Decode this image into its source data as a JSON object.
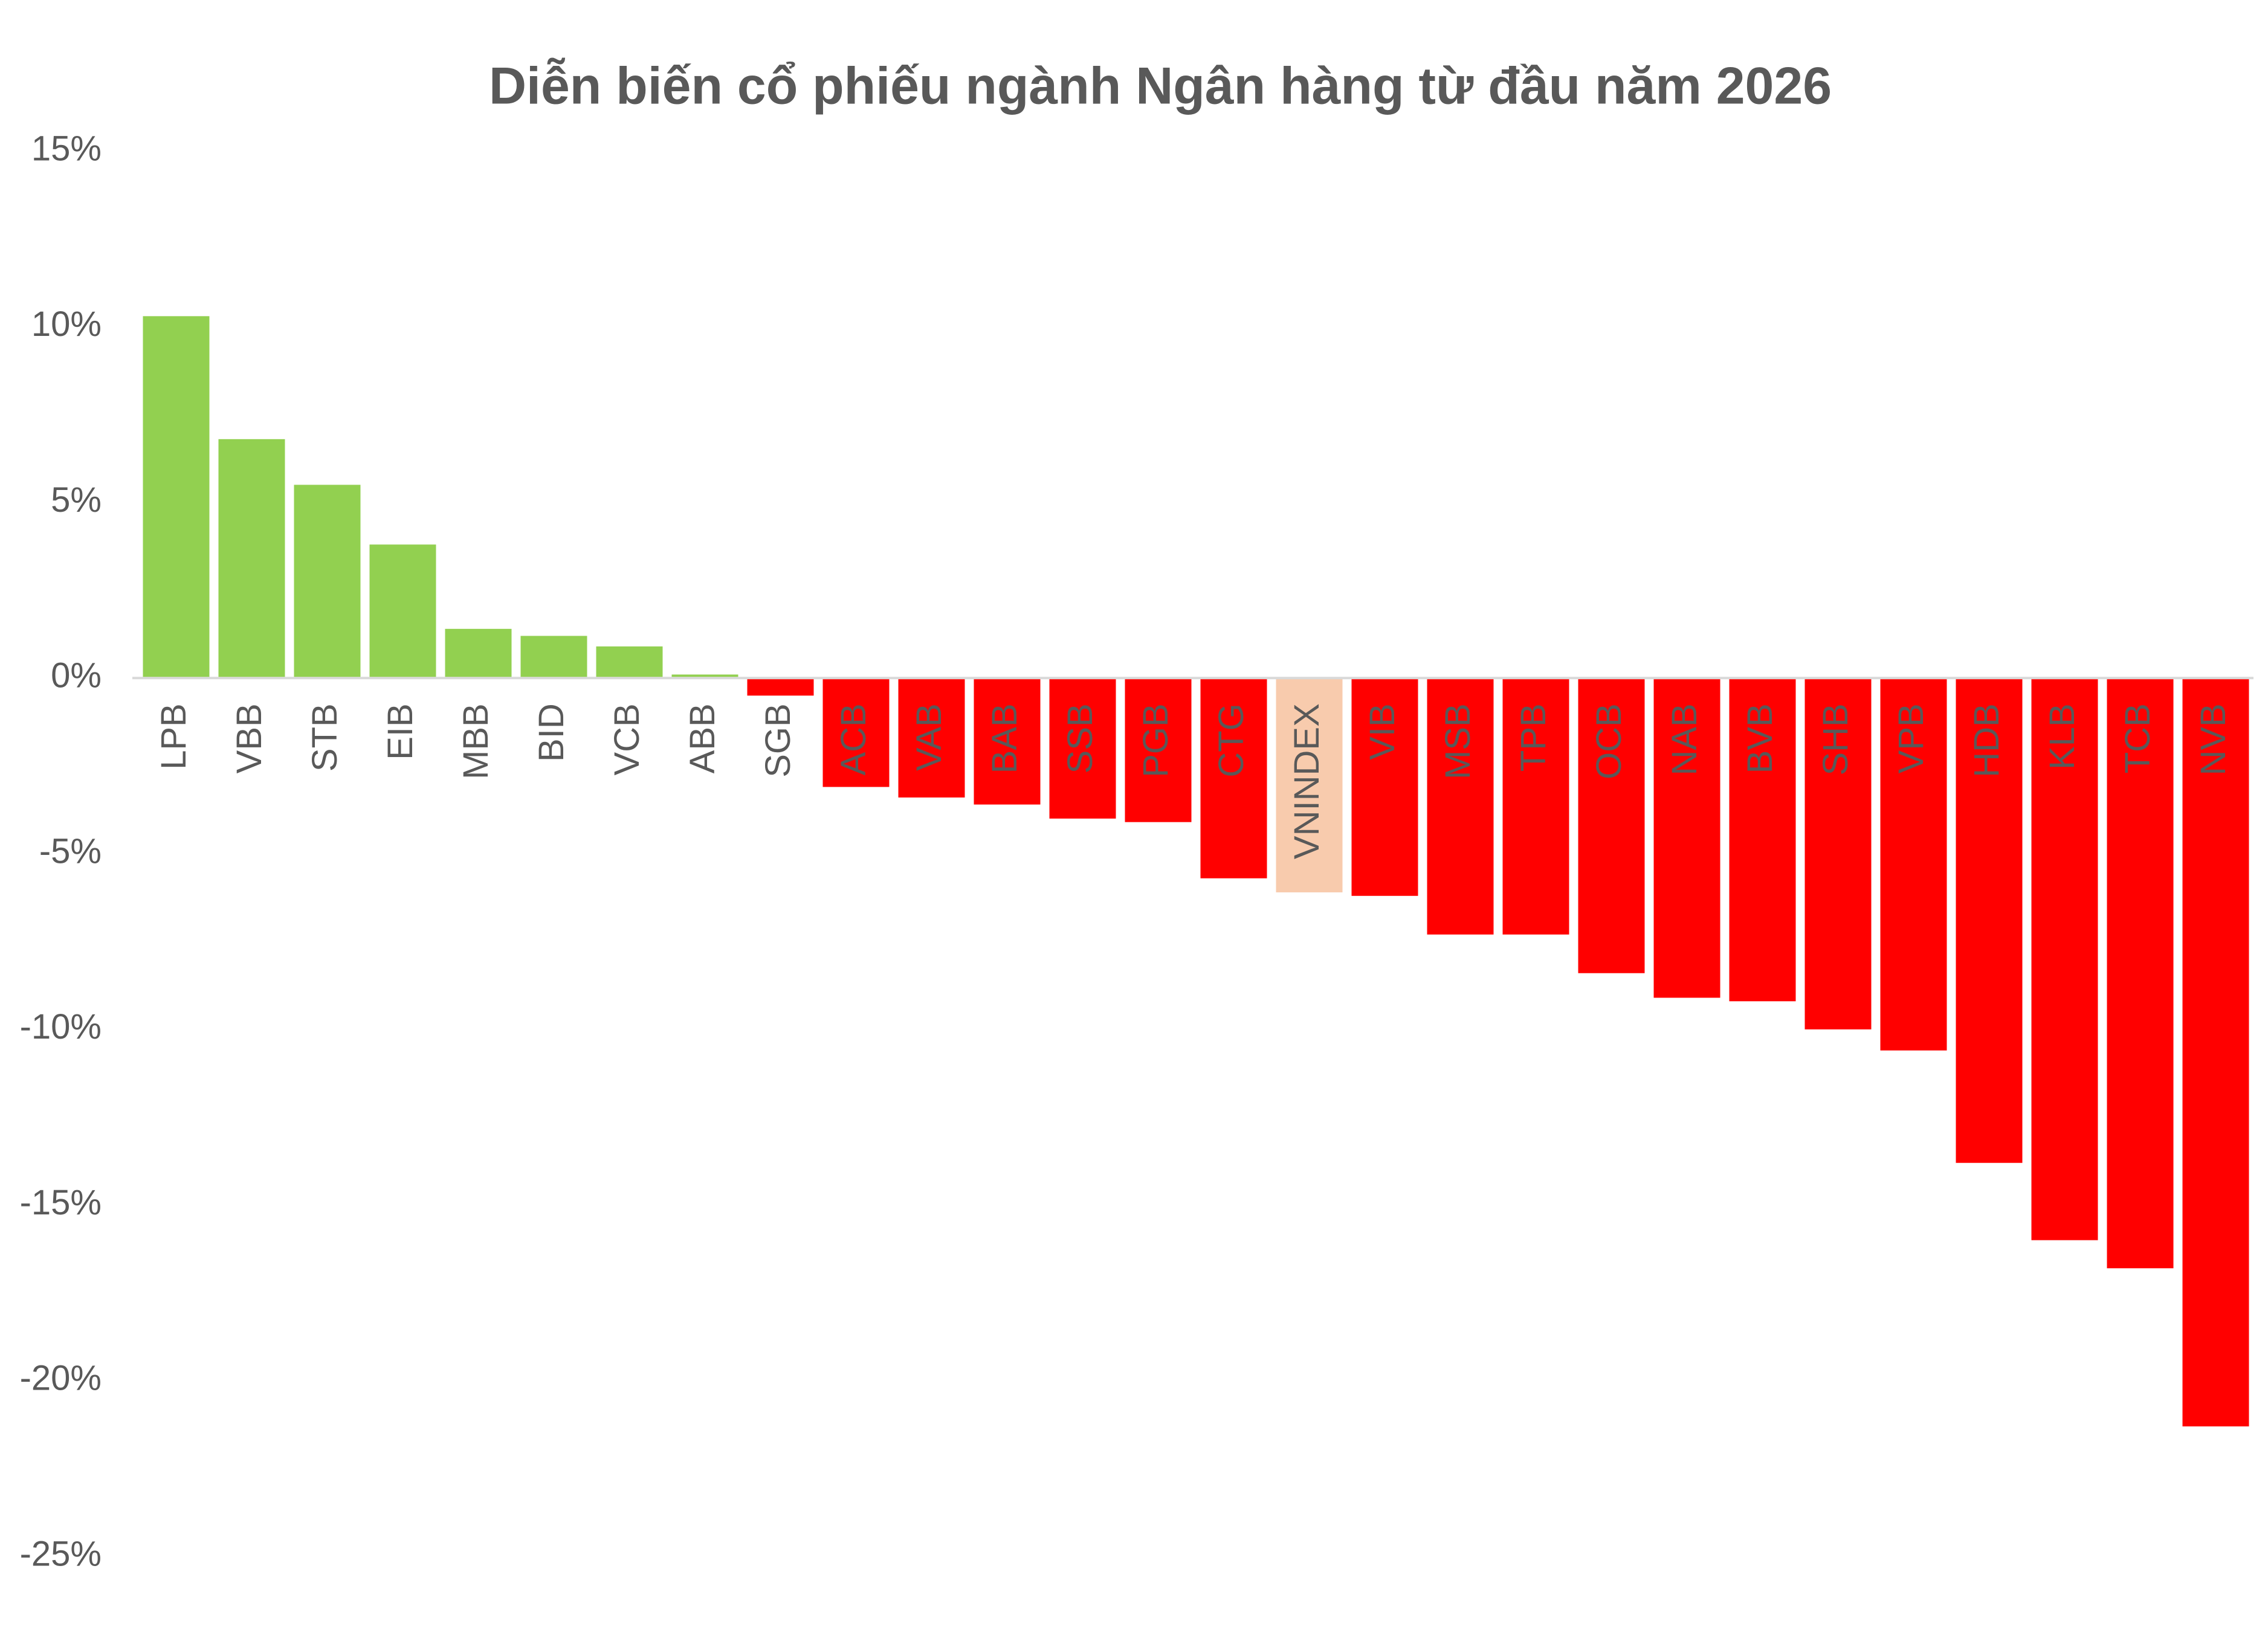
{
  "chart_data": {
    "type": "bar",
    "title": "Diễn biến cổ phiếu ngành Ngân hàng từ đầu năm 2026",
    "categories": [
      "LPB",
      "VBB",
      "STB",
      "EIB",
      "MBB",
      "BID",
      "VCB",
      "ABB",
      "SGB",
      "ACB",
      "VAB",
      "BAB",
      "SSB",
      "PGB",
      "CTG",
      "VNINDEX",
      "VIB",
      "MSB",
      "TPB",
      "OCB",
      "NAB",
      "BVB",
      "SHB",
      "VPB",
      "HDB",
      "KLB",
      "TCB",
      "NVB"
    ],
    "values": [
      10.3,
      6.8,
      5.5,
      3.8,
      1.4,
      1.2,
      0.9,
      0.1,
      -0.5,
      -3.1,
      -3.4,
      -3.6,
      -4.0,
      -4.1,
      -5.7,
      -6.1,
      -6.2,
      -7.3,
      -7.3,
      -8.4,
      -9.1,
      -9.2,
      -10.0,
      -10.6,
      -13.8,
      -16.0,
      -16.8,
      -21.3
    ],
    "colors": [
      "#92d050",
      "#92d050",
      "#92d050",
      "#92d050",
      "#92d050",
      "#92d050",
      "#92d050",
      "#92d050",
      "#ff0000",
      "#ff0000",
      "#ff0000",
      "#ff0000",
      "#ff0000",
      "#ff0000",
      "#ff0000",
      "#f8cbad",
      "#ff0000",
      "#ff0000",
      "#ff0000",
      "#ff0000",
      "#ff0000",
      "#ff0000",
      "#ff0000",
      "#ff0000",
      "#ff0000",
      "#ff0000",
      "#ff0000",
      "#ff0000"
    ],
    "ylim": [
      -25,
      15
    ],
    "yticks": [
      {
        "value": -25,
        "label": "-25%"
      },
      {
        "value": -20,
        "label": "-20%"
      },
      {
        "value": -15,
        "label": "-15%"
      },
      {
        "value": -10,
        "label": "-10%"
      },
      {
        "value": -5,
        "label": "-5%"
      },
      {
        "value": 0,
        "label": "0%"
      },
      {
        "value": 5,
        "label": "5%"
      },
      {
        "value": 10,
        "label": "10%"
      },
      {
        "value": 15,
        "label": "15%"
      }
    ],
    "grid": false
  }
}
